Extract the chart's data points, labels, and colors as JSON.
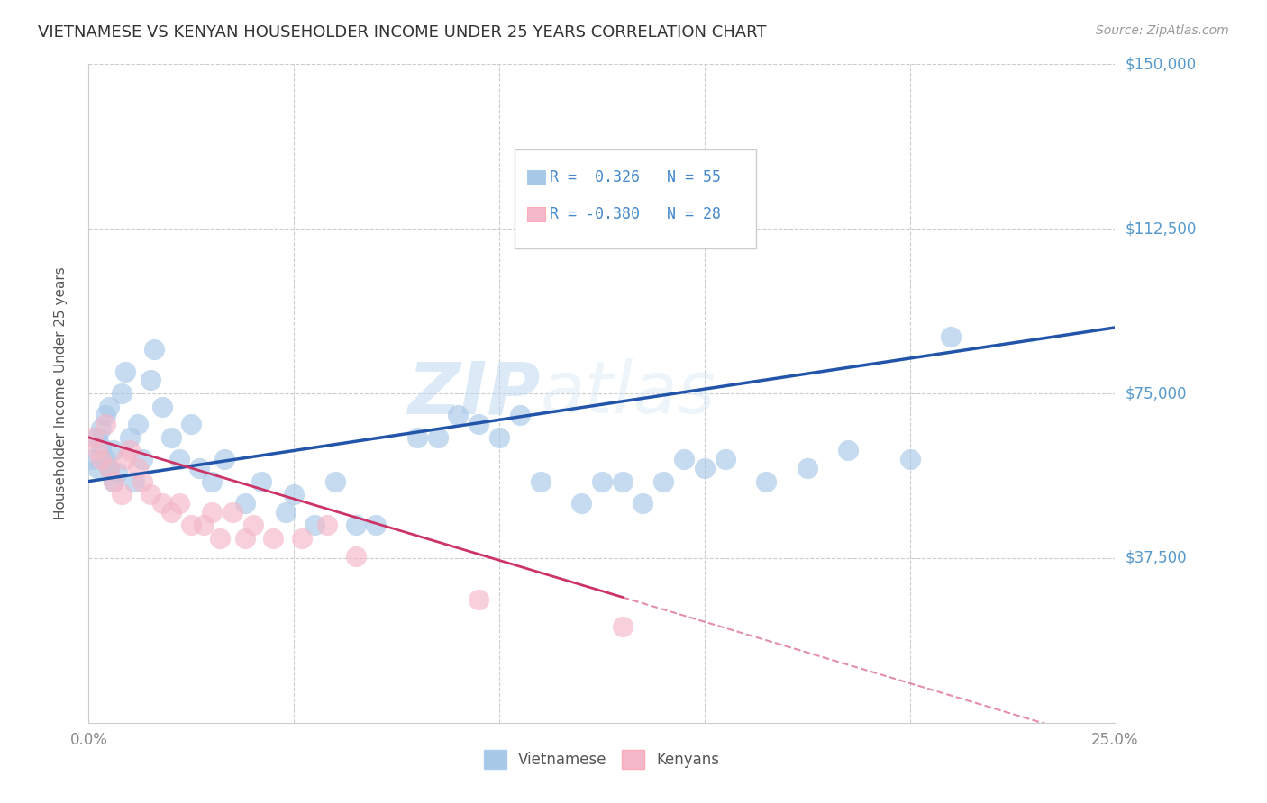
{
  "title": "VIETNAMESE VS KENYAN HOUSEHOLDER INCOME UNDER 25 YEARS CORRELATION CHART",
  "source": "Source: ZipAtlas.com",
  "ylabel": "Householder Income Under 25 years",
  "xlim": [
    0,
    0.25
  ],
  "ylim": [
    0,
    150000
  ],
  "watermark": "ZIPatlas",
  "background_color": "#ffffff",
  "grid_color": "#cccccc",
  "blue_color": "#a8c8e8",
  "pink_color": "#f4b8c8",
  "blue_line_color": "#2255aa",
  "pink_line_color": "#cc3366",
  "right_label_color": "#5599cc",
  "viet_x": [
    0.001,
    0.002,
    0.002,
    0.003,
    0.003,
    0.004,
    0.004,
    0.005,
    0.005,
    0.006,
    0.006,
    0.007,
    0.008,
    0.009,
    0.01,
    0.011,
    0.012,
    0.013,
    0.015,
    0.016,
    0.018,
    0.02,
    0.022,
    0.025,
    0.027,
    0.03,
    0.033,
    0.038,
    0.042,
    0.048,
    0.05,
    0.055,
    0.06,
    0.065,
    0.07,
    0.08,
    0.085,
    0.09,
    0.095,
    0.1,
    0.105,
    0.11,
    0.12,
    0.125,
    0.13,
    0.135,
    0.14,
    0.145,
    0.15,
    0.155,
    0.165,
    0.175,
    0.185,
    0.2,
    0.21
  ],
  "viet_y": [
    60000,
    65000,
    58000,
    63000,
    67000,
    70000,
    60000,
    58000,
    72000,
    55000,
    62000,
    57000,
    75000,
    80000,
    65000,
    55000,
    68000,
    60000,
    78000,
    85000,
    72000,
    65000,
    60000,
    68000,
    58000,
    55000,
    60000,
    50000,
    55000,
    48000,
    52000,
    45000,
    55000,
    45000,
    45000,
    65000,
    65000,
    70000,
    68000,
    65000,
    70000,
    55000,
    50000,
    55000,
    55000,
    50000,
    55000,
    60000,
    58000,
    60000,
    55000,
    58000,
    62000,
    60000,
    88000
  ],
  "ken_x": [
    0.001,
    0.002,
    0.003,
    0.004,
    0.005,
    0.006,
    0.008,
    0.009,
    0.01,
    0.012,
    0.013,
    0.015,
    0.018,
    0.02,
    0.022,
    0.025,
    0.028,
    0.03,
    0.032,
    0.035,
    0.038,
    0.04,
    0.045,
    0.052,
    0.058,
    0.065,
    0.095,
    0.13
  ],
  "ken_y": [
    65000,
    62000,
    60000,
    68000,
    58000,
    55000,
    52000,
    60000,
    62000,
    58000,
    55000,
    52000,
    50000,
    48000,
    50000,
    45000,
    45000,
    48000,
    42000,
    48000,
    42000,
    45000,
    42000,
    42000,
    45000,
    38000,
    28000,
    22000
  ],
  "legend_text_color": "#4488cc"
}
